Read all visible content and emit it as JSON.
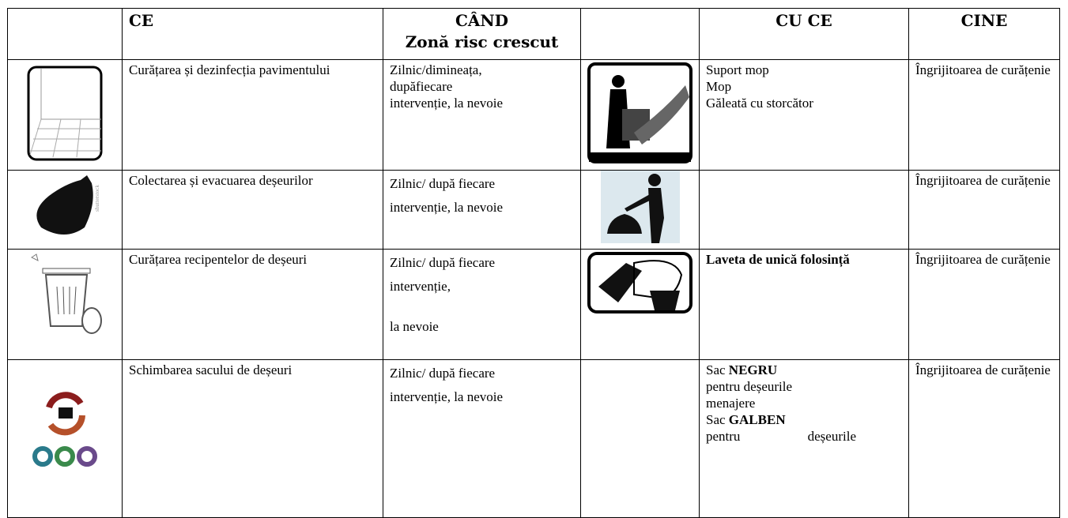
{
  "header": {
    "ce": "CE",
    "cand": [
      "CÂND",
      "Zonă risc crescut"
    ],
    "cu_ce": "CU CE",
    "cine": "CINE"
  },
  "rows": [
    {
      "ce": "Curățarea și dezinfecția pavimentului",
      "cand": [
        "Zilnic/dimineața,",
        "dupăfiecare",
        "intervenție, la nevoie"
      ],
      "cu_ce": [
        [
          {
            "t": "Suport mop"
          }
        ],
        [
          {
            "t": "Mop"
          }
        ],
        [
          {
            "t": "Găleată cu storcător"
          }
        ]
      ],
      "cine": "Îngrijitoarea de curățenie"
    },
    {
      "ce": "Colectarea și evacuarea deșeurilor",
      "cand": [
        "Zilnic/ după fiecare",
        "intervenție, la nevoie"
      ],
      "cu_ce": [],
      "cine": "Îngrijitoarea de curățenie"
    },
    {
      "ce": "Curățarea recipentelor de deșeuri",
      "cand": [
        "Zilnic/ după fiecare",
        "intervenție,",
        "la nevoie"
      ],
      "cu_ce": [
        [
          {
            "t": "Laveta de unică folosință",
            "b": true
          }
        ]
      ],
      "cine": "Îngrijitoarea de curățenie"
    },
    {
      "ce": "Schimbarea sacului de deșeuri",
      "cand": [
        "Zilnic/ după fiecare",
        "intervenție, la nevoie"
      ],
      "cu_ce": [
        [
          {
            "t": "Sac "
          },
          {
            "t": "NEGRU",
            "b": true
          }
        ],
        [
          {
            "t": "pentru deșeurile"
          }
        ],
        [
          {
            "t": "menajere"
          }
        ],
        [
          {
            "t": "Sac "
          },
          {
            "t": "GALBEN",
            "b": true
          }
        ],
        [
          {
            "t": "pentru deșeurile"
          }
        ]
      ],
      "cine": "Îngrijitoarea de curățenie"
    }
  ]
}
